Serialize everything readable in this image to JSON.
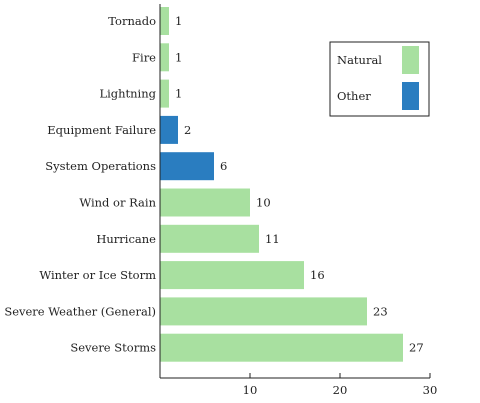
{
  "chart_data": {
    "type": "bar",
    "orientation": "horizontal",
    "categories": [
      "Tornado",
      "Fire",
      "Lightning",
      "Equipment Failure",
      "System Operations",
      "Wind or Rain",
      "Hurricane",
      "Winter or Ice Storm",
      "Severe Weather (General)",
      "Severe Storms"
    ],
    "values": [
      1,
      1,
      1,
      2,
      6,
      10,
      11,
      16,
      23,
      27
    ],
    "groups": [
      "Natural",
      "Natural",
      "Natural",
      "Other",
      "Other",
      "Natural",
      "Natural",
      "Natural",
      "Natural",
      "Natural"
    ],
    "legend": [
      {
        "name": "Natural",
        "color": "#a8e0a0"
      },
      {
        "name": "Other",
        "color": "#2a7dc0"
      }
    ],
    "legend_position": "top-right",
    "xlim": [
      0,
      30
    ],
    "xticks": [
      10,
      20,
      30
    ],
    "grid": false,
    "title": "",
    "xlabel": "",
    "ylabel": ""
  }
}
